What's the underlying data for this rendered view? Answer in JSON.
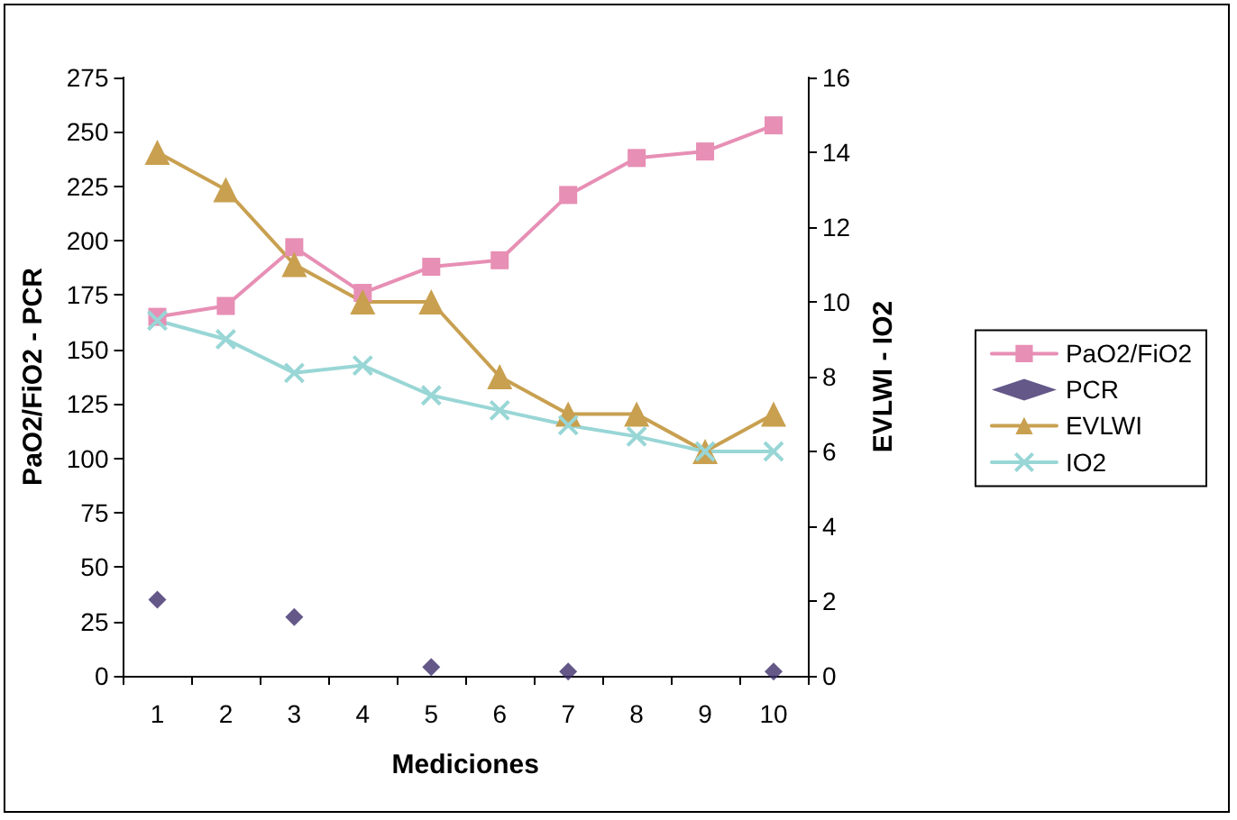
{
  "chart_data": {
    "type": "line",
    "xlabel": "Mediciones",
    "ylabel": "PaO2/FiO2 - PCR",
    "y2label": "EVLWI - IO2",
    "categories": [
      "1",
      "2",
      "3",
      "4",
      "5",
      "6",
      "7",
      "8",
      "9",
      "10"
    ],
    "series": [
      {
        "name": "PaO2/FiO2",
        "color": "#e78fb5",
        "marker": "square",
        "values": [
          165,
          170,
          197,
          176,
          188,
          191,
          221,
          238,
          241,
          253
        ]
      },
      {
        "name": "PCR",
        "type": "scatter",
        "color": "#3d2e6b",
        "marker": "diamond",
        "values": [
          35,
          null,
          27,
          null,
          4,
          null,
          2,
          null,
          null,
          2
        ]
      },
      {
        "name": "EVLWI",
        "color": "#c8a050",
        "marker": "triangle",
        "axis": "y2",
        "values": [
          14,
          13,
          11,
          10,
          10,
          8,
          7,
          7,
          6,
          7
        ]
      },
      {
        "name": "IO2",
        "color": "#99d6d6",
        "marker": "cross",
        "axis": "y2",
        "values": [
          9.5,
          9.0,
          8.1,
          8.3,
          7.5,
          7.1,
          6.7,
          6.4,
          6.0,
          6.0
        ]
      }
    ],
    "ylim": [
      0,
      275
    ],
    "yticks": [
      0,
      25,
      50,
      75,
      100,
      125,
      150,
      175,
      200,
      225,
      250,
      275
    ],
    "y2lim": [
      0,
      16
    ],
    "y2ticks": [
      0,
      2,
      4,
      6,
      8,
      10,
      12,
      14,
      16
    ],
    "grid": false,
    "legend": "right"
  }
}
